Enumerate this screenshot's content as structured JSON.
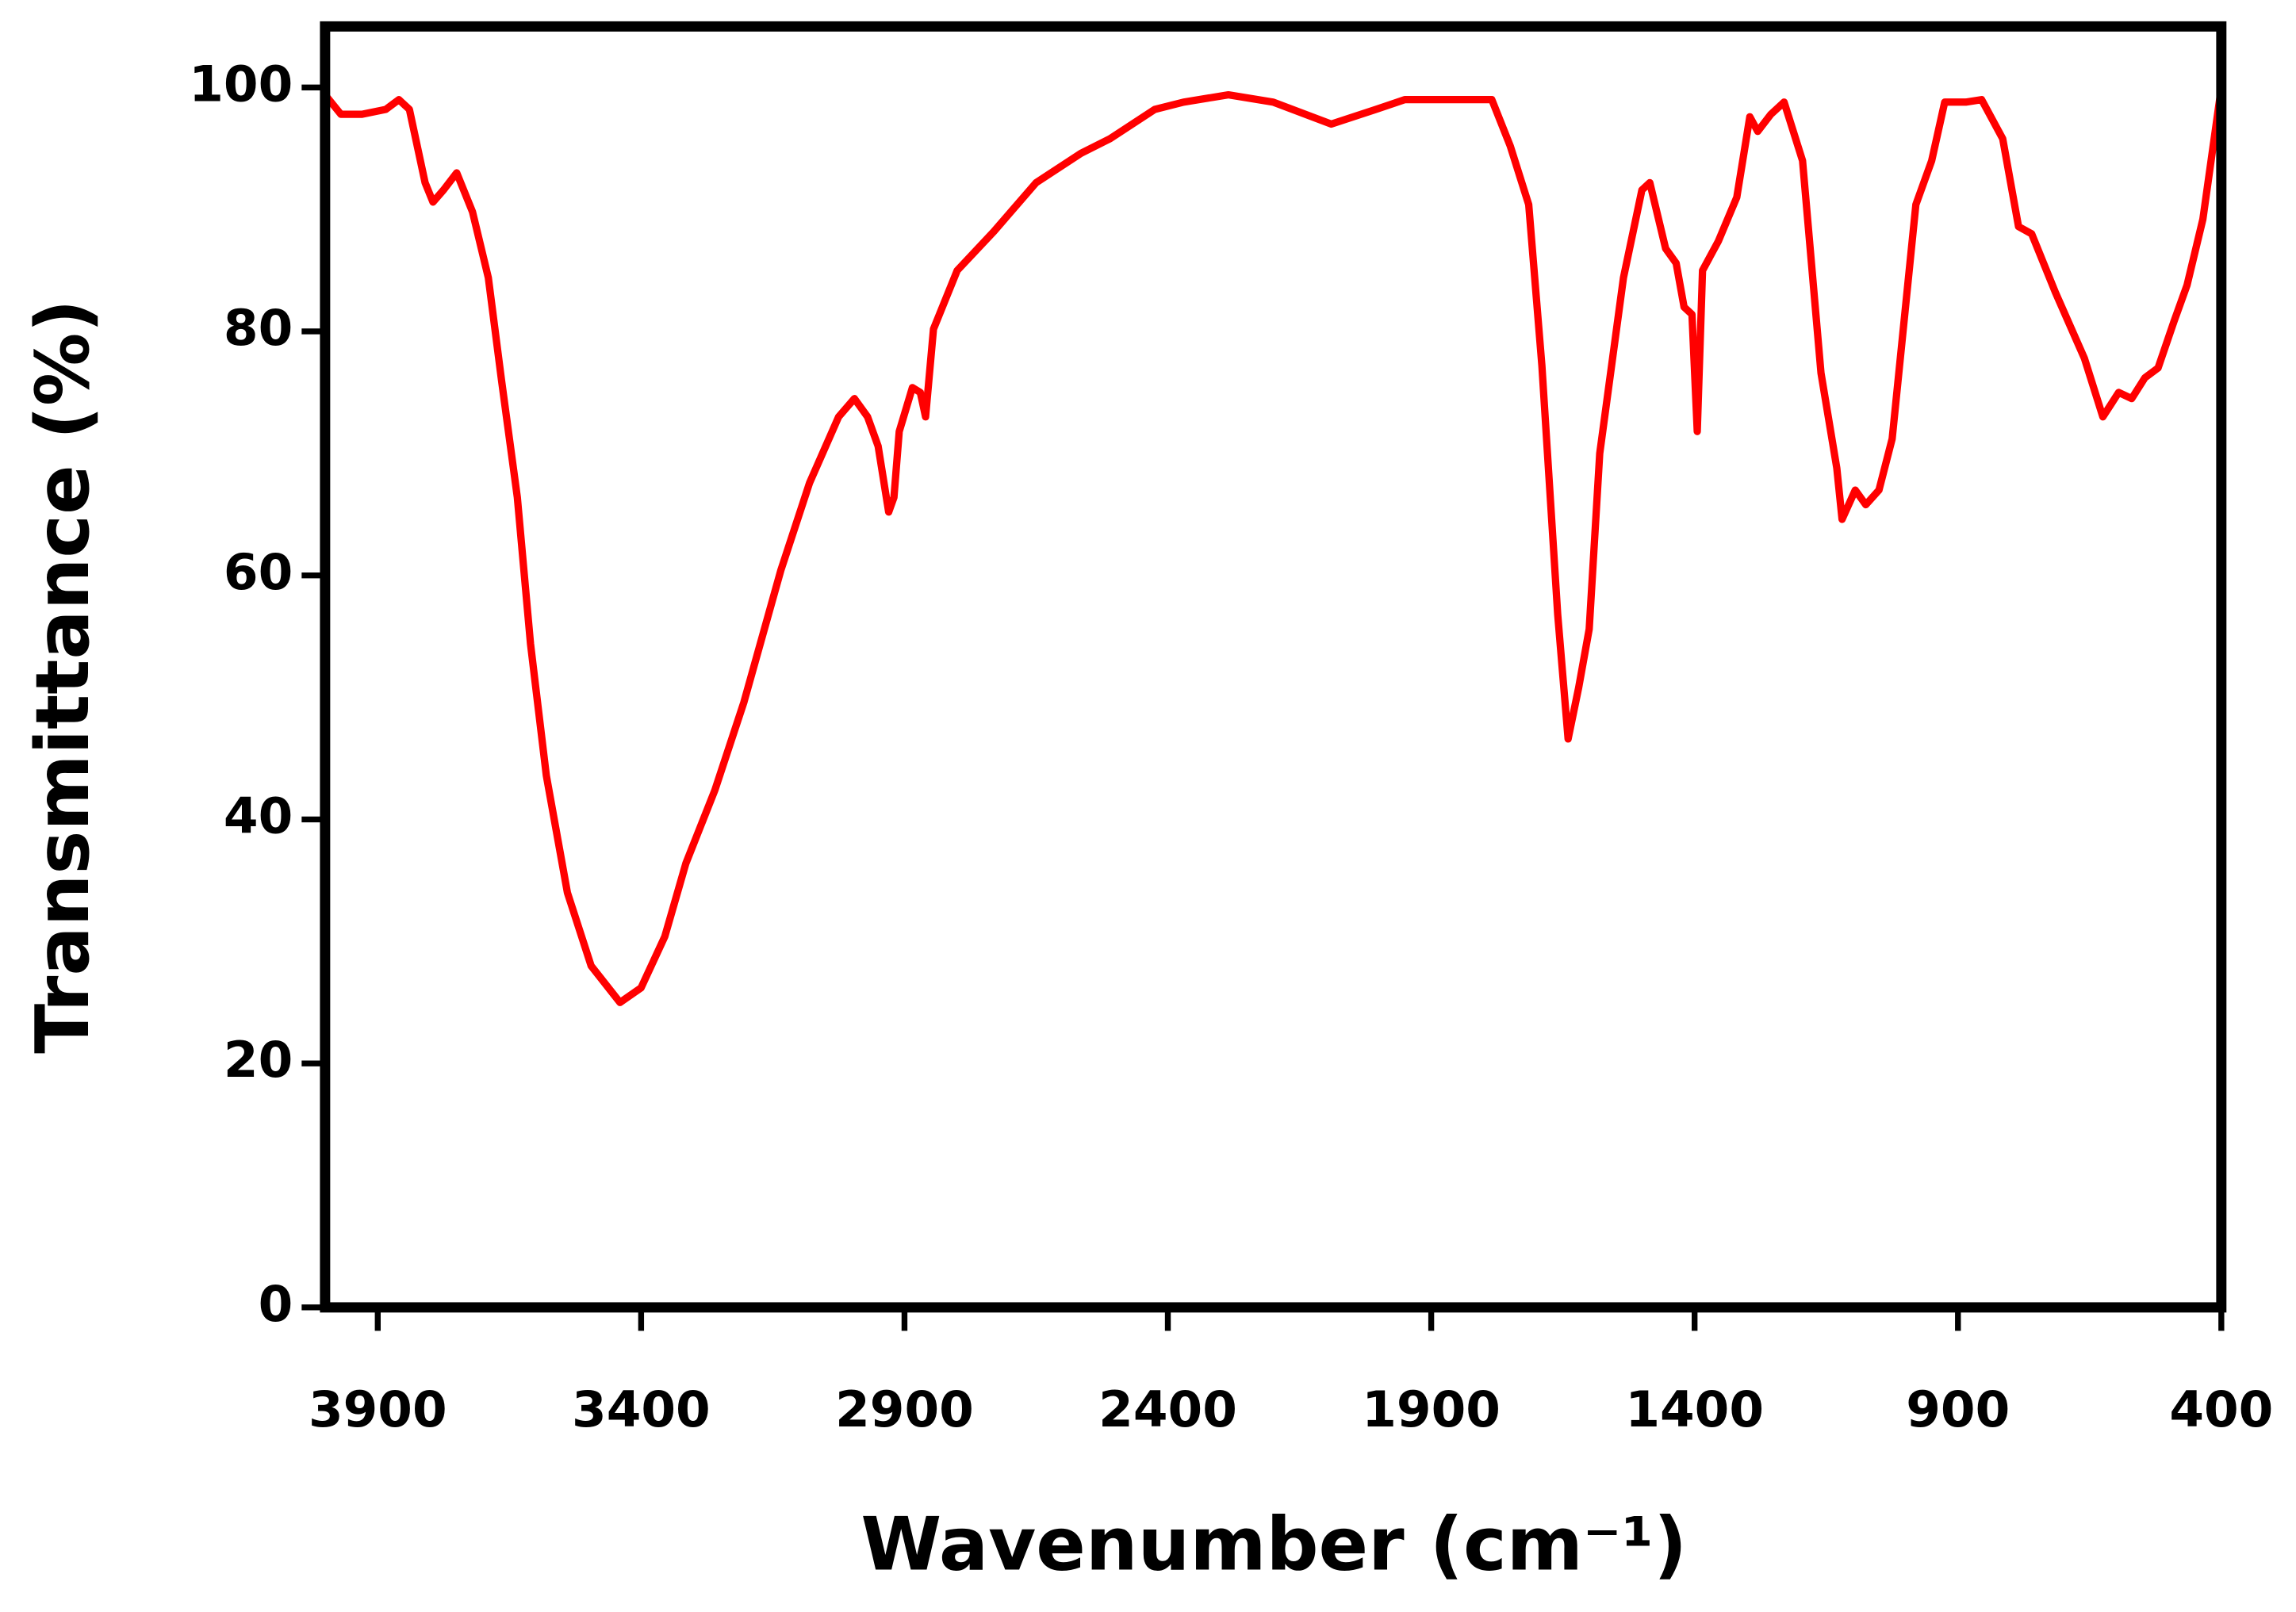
{
  "chart_data": {
    "type": "line",
    "x_label": "Wavenumber (cm⁻¹)",
    "y_label": "Transmittance (%)",
    "color": "#ff0000",
    "xlim": [
      4000,
      400
    ],
    "ylim": [
      0,
      105
    ],
    "xticks": [
      3900,
      3400,
      2900,
      2400,
      1900,
      1400,
      900,
      400
    ],
    "yticks": [
      0,
      20,
      40,
      60,
      80,
      100
    ],
    "x": [
      4000,
      3970,
      3930,
      3885,
      3860,
      3840,
      3810,
      3795,
      3775,
      3750,
      3720,
      3690,
      3665,
      3635,
      3610,
      3580,
      3540,
      3495,
      3440,
      3400,
      3355,
      3315,
      3260,
      3205,
      3135,
      3080,
      3025,
      2995,
      2970,
      2950,
      2930,
      2920,
      2910,
      2885,
      2870,
      2860,
      2845,
      2800,
      2730,
      2650,
      2565,
      2510,
      2425,
      2370,
      2285,
      2200,
      2090,
      2005,
      1950,
      1785,
      1750,
      1715,
      1690,
      1660,
      1640,
      1620,
      1600,
      1580,
      1535,
      1500,
      1485,
      1455,
      1435,
      1420,
      1405,
      1395,
      1385,
      1355,
      1320,
      1295,
      1280,
      1255,
      1230,
      1195,
      1160,
      1130,
      1120,
      1095,
      1075,
      1050,
      1025,
      980,
      950,
      925,
      885,
      855,
      815,
      785,
      760,
      715,
      660,
      625,
      595,
      570,
      545,
      520,
      490,
      465,
      435,
      400
    ],
    "values": [
      99.4,
      97.8,
      97.8,
      98.2,
      99,
      98.2,
      92.2,
      90.6,
      91.6,
      93,
      89.8,
      84.4,
      76,
      66.4,
      54.4,
      43.6,
      34,
      28,
      25,
      26.2,
      30.4,
      36.4,
      42.4,
      49.6,
      60.4,
      67.6,
      73,
      74.5,
      73,
      70.6,
      65.2,
      66.4,
      71.8,
      75.4,
      75,
      73,
      80.2,
      85,
      88.2,
      92.2,
      94.6,
      95.8,
      98.2,
      98.8,
      99.4,
      98.8,
      97,
      98.2,
      99,
      99,
      95.2,
      90.4,
      77.2,
      56.8,
      46.6,
      50.8,
      55.6,
      70,
      84.4,
      91.6,
      92.2,
      86.8,
      85.6,
      82,
      81.4,
      71.8,
      85,
      87.4,
      91,
      97.6,
      96.4,
      97.8,
      98.8,
      94,
      76.6,
      68.8,
      64.6,
      67,
      65.8,
      67,
      71.2,
      90.4,
      94,
      98.8,
      98.8,
      99,
      95.8,
      88.6,
      88,
      83.2,
      77.8,
      73,
      75,
      74.5,
      76.2,
      77,
      80.8,
      83.8,
      89.2,
      100
    ]
  }
}
